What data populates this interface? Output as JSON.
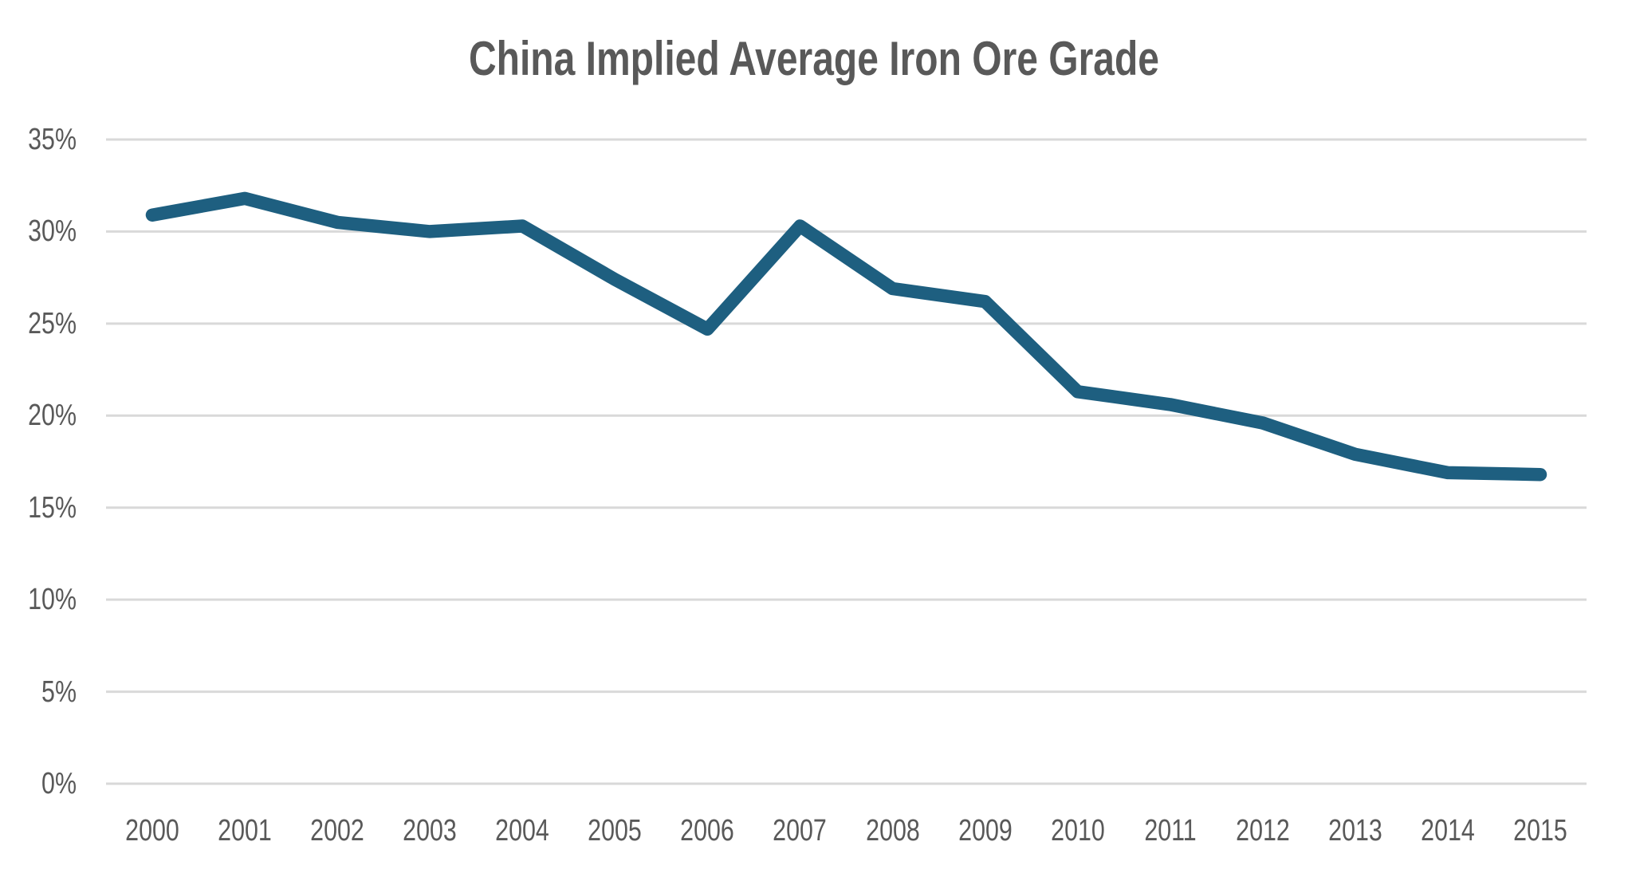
{
  "chart_data": {
    "type": "line",
    "title": "China Implied Average Iron Ore Grade",
    "categories": [
      "2000",
      "2001",
      "2002",
      "2003",
      "2004",
      "2005",
      "2006",
      "2007",
      "2008",
      "2009",
      "2010",
      "2011",
      "2012",
      "2013",
      "2014",
      "2015"
    ],
    "values": [
      30.9,
      31.8,
      30.5,
      30.0,
      30.3,
      27.4,
      24.7,
      30.3,
      26.9,
      26.2,
      21.3,
      20.6,
      19.6,
      17.9,
      16.9,
      16.8
    ],
    "y_ticks": [
      "0%",
      "5%",
      "10%",
      "15%",
      "20%",
      "25%",
      "30%",
      "35%"
    ],
    "xlabel": "",
    "ylabel": "",
    "ylim": [
      0,
      35
    ],
    "grid": "horizontal",
    "legend": "none",
    "colors": {
      "line": "#1E5F80",
      "gridline": "#D9D9D9",
      "text": "#595959",
      "background": "#FFFFFF"
    }
  }
}
